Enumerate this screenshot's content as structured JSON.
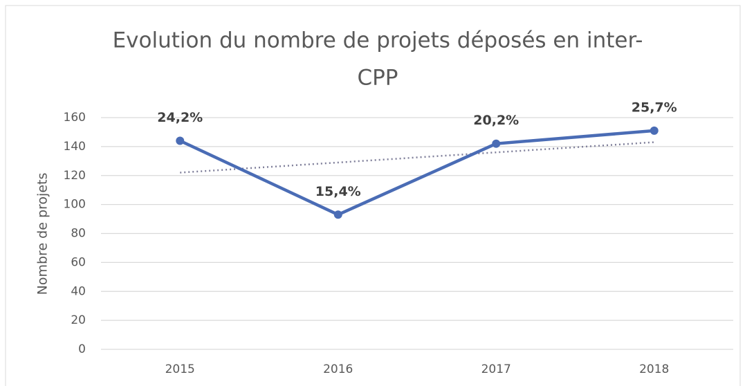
{
  "chart_data": {
    "type": "line",
    "title": [
      "Evolution du nombre de projets déposés en inter-",
      "CPP"
    ],
    "y_label": "Nombre de projets",
    "categories": [
      "2015",
      "2016",
      "2017",
      "2018"
    ],
    "series": [
      {
        "name": "Nombre de projets",
        "color": "#4a6cb5",
        "values": [
          144,
          93,
          142,
          151
        ]
      }
    ],
    "annotations": [
      "24,2%",
      "15,4%",
      "20,2%",
      "25,7%"
    ],
    "trendline": {
      "kind": "linear",
      "color": "#7f7f9a"
    },
    "ylim": [
      0,
      160
    ],
    "yticks": [
      0,
      20,
      40,
      60,
      80,
      100,
      120,
      140,
      160
    ],
    "grid": true
  }
}
